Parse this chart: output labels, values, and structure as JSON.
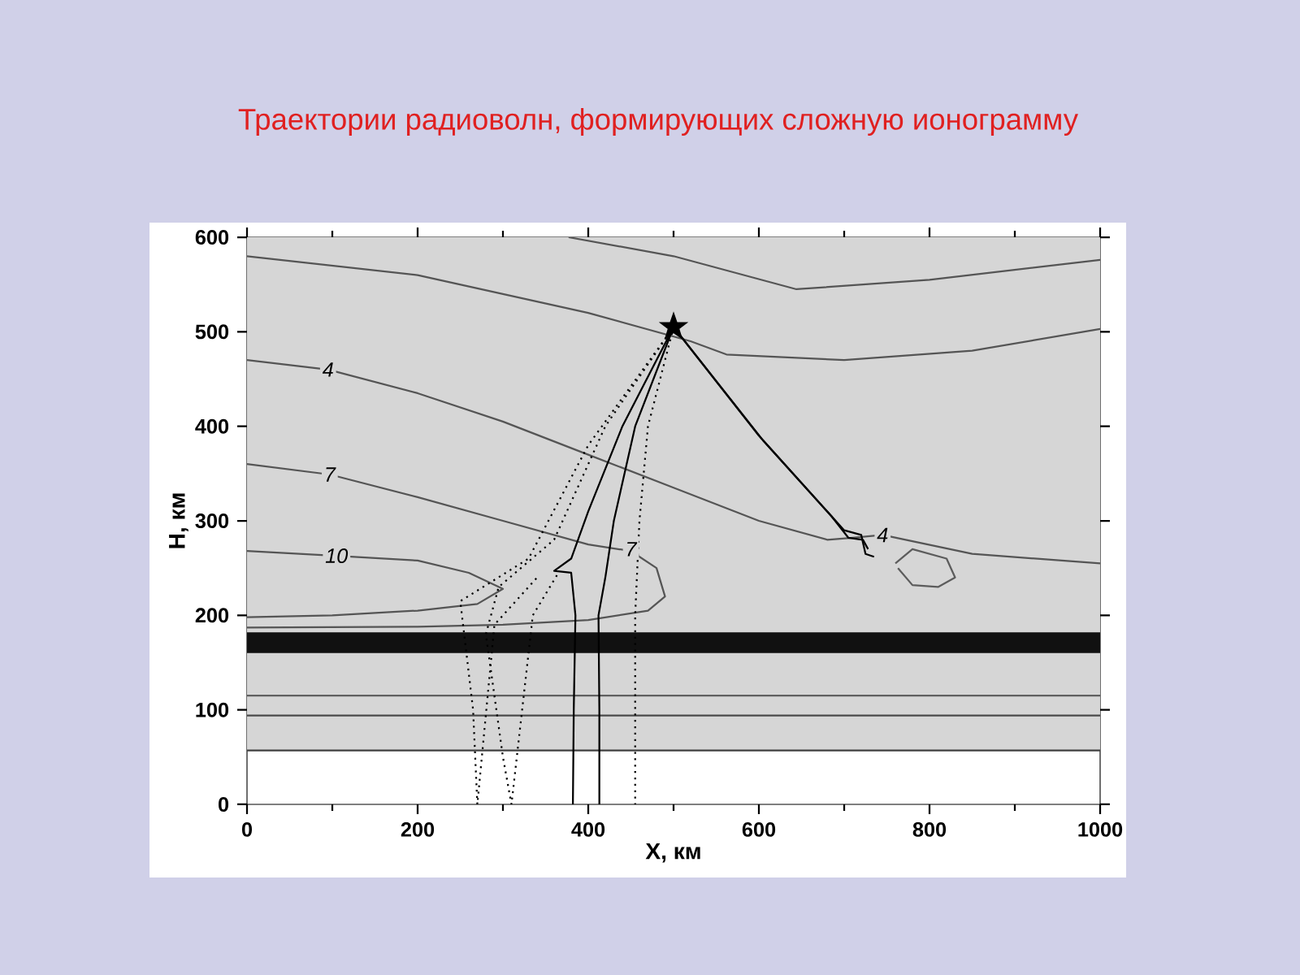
{
  "chart_data": {
    "type": "line",
    "title": "Траектории радиоволн, формирующих сложную ионограмму",
    "xlabel": "X, км",
    "ylabel": "H, км",
    "xlim": [
      0,
      1000
    ],
    "ylim": [
      0,
      600
    ],
    "xticks": [
      0,
      200,
      400,
      600,
      800,
      1000
    ],
    "yticks": [
      0,
      100,
      200,
      300,
      400,
      500,
      600
    ],
    "bands": [
      {
        "axis": "y",
        "from": 57,
        "to": 600,
        "color": "#d6d6d6"
      },
      {
        "axis": "y",
        "from": 160,
        "to": 182,
        "color": "#111111"
      }
    ],
    "series": [
      {
        "color": "#555555",
        "line_style": "solid",
        "x": [
          377,
          500,
          644,
          800,
          1000
        ],
        "values": [
          600,
          580,
          545,
          555,
          576
        ]
      },
      {
        "color": "#555555",
        "line_style": "solid",
        "x": [
          0,
          200,
          400,
          520,
          562,
          700,
          850,
          1000
        ],
        "values": [
          580,
          560,
          520,
          490,
          476,
          470,
          480,
          503
        ]
      },
      {
        "color": "#555555",
        "line_style": "solid",
        "x": [
          0,
          95,
          200,
          300,
          400,
          500,
          600,
          680,
          710,
          745,
          850,
          1000
        ],
        "values": [
          470,
          460,
          435,
          405,
          370,
          335,
          300,
          280,
          282,
          285,
          265,
          255
        ]
      },
      {
        "color": "#555555",
        "line_style": "solid",
        "x": [
          0,
          97,
          200,
          300,
          400,
          450,
          480,
          490,
          470,
          400,
          300,
          200,
          0
        ],
        "values": [
          360,
          349,
          325,
          300,
          275,
          268,
          250,
          220,
          205,
          195,
          190,
          188,
          187
        ]
      },
      {
        "color": "#555555",
        "line_style": "solid",
        "x": [
          0,
          105,
          200,
          260,
          300,
          270,
          200,
          100,
          0
        ],
        "values": [
          268,
          263,
          258,
          245,
          228,
          212,
          205,
          200,
          198
        ]
      },
      {
        "color": "#5c5c5c",
        "line_style": "solid",
        "x": [
          760,
          780,
          820,
          830,
          810,
          780,
          763
        ],
        "values": [
          255,
          270,
          260,
          240,
          230,
          232,
          250
        ]
      },
      {
        "color": "#606060",
        "line_style": "solid",
        "x": [
          0,
          1000
        ],
        "values": [
          115,
          115
        ]
      },
      {
        "color": "#4a4a4a",
        "line_style": "solid",
        "x": [
          0,
          1000
        ],
        "values": [
          94,
          94
        ]
      },
      {
        "color": "#404040",
        "line_style": "solid",
        "x": [
          0,
          1000
        ],
        "values": [
          57,
          57
        ]
      },
      {
        "color": "#000000",
        "line_style": "solid",
        "x": [
          500,
          440,
          400,
          380,
          360,
          380,
          385,
          383,
          382
        ],
        "values": [
          505,
          400,
          310,
          260,
          247,
          245,
          200,
          100,
          0
        ]
      },
      {
        "color": "#000000",
        "line_style": "solid",
        "x": [
          500,
          455,
          430,
          420,
          412,
          413,
          413
        ],
        "values": [
          505,
          400,
          300,
          240,
          200,
          100,
          0
        ]
      },
      {
        "color": "#000000",
        "line_style": "dotted",
        "x": [
          500,
          400,
          330,
          250,
          265,
          270,
          290,
          340
        ],
        "values": [
          505,
          380,
          260,
          215,
          100,
          0,
          190,
          240
        ]
      },
      {
        "color": "#000000",
        "line_style": "dotted",
        "x": [
          500,
          420,
          360,
          295,
          280,
          300,
          310,
          335,
          365
        ],
        "values": [
          505,
          400,
          280,
          230,
          180,
          50,
          0,
          200,
          245
        ]
      },
      {
        "color": "#000000",
        "line_style": "dotted",
        "x": [
          500,
          470,
          460,
          455,
          455
        ],
        "values": [
          505,
          400,
          300,
          200,
          0
        ]
      },
      {
        "color": "#000000",
        "line_style": "solid",
        "x": [
          500,
          600,
          680,
          700,
          720,
          725,
          735
        ],
        "values": [
          505,
          390,
          310,
          290,
          285,
          265,
          262
        ]
      },
      {
        "color": "#000000",
        "line_style": "solid",
        "x": [
          500,
          605,
          685,
          705,
          722,
          728
        ],
        "values": [
          505,
          385,
          305,
          282,
          280,
          270
        ]
      },
      {
        "type": "scatter",
        "marker": "star",
        "color": "#000000",
        "x": [
          500
        ],
        "values": [
          505
        ]
      }
    ],
    "annotations": [
      {
        "text": "4",
        "x": 95,
        "y": 460
      },
      {
        "text": "7",
        "x": 97,
        "y": 349
      },
      {
        "text": "10",
        "x": 105,
        "y": 263
      },
      {
        "text": "7",
        "x": 450,
        "y": 270
      },
      {
        "text": "4",
        "x": 745,
        "y": 285
      }
    ]
  }
}
